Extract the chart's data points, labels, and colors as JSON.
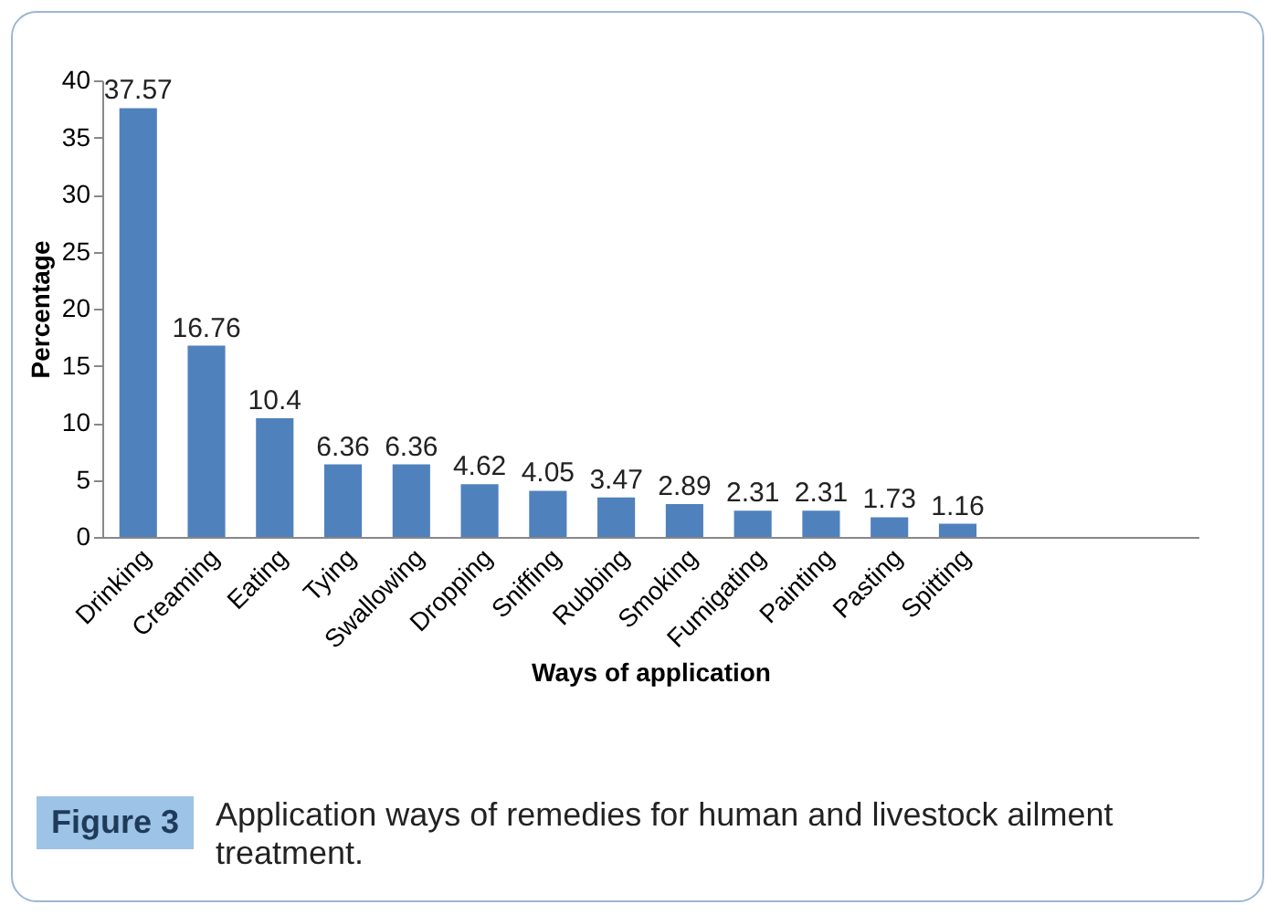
{
  "chart_data": {
    "type": "bar",
    "xlabel": "Ways of application",
    "ylabel": "Percentage",
    "categories": [
      "Drinking",
      "Creaming",
      "Eating",
      "Tying",
      "Swallowing",
      "Dropping",
      "Sniffing",
      "Rubbing",
      "Smoking",
      "Fumigating",
      "Painting",
      "Pasting",
      "Spitting",
      null,
      null,
      null
    ],
    "values": [
      37.57,
      16.76,
      10.4,
      6.36,
      6.36,
      4.62,
      4.05,
      3.47,
      2.89,
      2.31,
      2.31,
      1.73,
      1.16,
      null,
      null,
      null
    ],
    "color": "#4f81bd",
    "data_labels": true,
    "grid": false,
    "ylim": [
      0,
      40
    ],
    "yticks": [
      0,
      5,
      10,
      15,
      20,
      25,
      30,
      35,
      40
    ],
    "annotations": [
      "Figure 3",
      "Application ways of remedies for human and livestock ailment treatment."
    ]
  }
}
